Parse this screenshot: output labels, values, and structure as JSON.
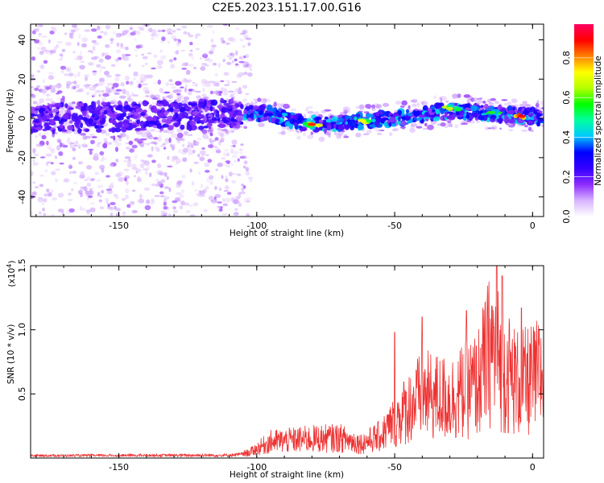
{
  "title": "C2E5.2023.151.17.00.G16",
  "chart_data": [
    {
      "type": "heatmap",
      "title": "C2E5.2023.151.17.00.G16",
      "xlabel": "Height of straight line (km)",
      "ylabel": "Frequency (Hz)",
      "xlim": [
        -182,
        4
      ],
      "ylim": [
        -50,
        48
      ],
      "x_ticks": [
        -150,
        -100,
        -50,
        0
      ],
      "x_tick_labels": [
        "-150",
        "-100",
        "-50",
        "0"
      ],
      "y_ticks": [
        -40,
        -20,
        0,
        20,
        40
      ],
      "y_tick_labels": [
        "-40",
        "-20",
        "0",
        "20",
        "40"
      ],
      "colorbar": {
        "label": "Normalized spectral amplitude",
        "range": [
          0,
          0.97
        ],
        "ticks": [
          0.0,
          0.2,
          0.4,
          0.6,
          0.8
        ],
        "tick_labels": [
          "0.0",
          "0.2",
          "0.4",
          "0.6",
          "0.8"
        ],
        "colormap": [
          "#ffffff",
          "#d8b4ff",
          "#8c2cff",
          "#3400ff",
          "#0000ff",
          "#00c8ff",
          "#00ffa0",
          "#00ff00",
          "#b4ff00",
          "#ffff00",
          "#ff8000",
          "#ff0000",
          "#ff0060"
        ]
      },
      "ridge": [
        {
          "x": -182,
          "f": 0
        },
        {
          "x": -150,
          "f": 1
        },
        {
          "x": -120,
          "f": 2
        },
        {
          "x": -105,
          "f": 3
        },
        {
          "x": -95,
          "f": 2
        },
        {
          "x": -85,
          "f": -2
        },
        {
          "x": -75,
          "f": -3
        },
        {
          "x": -60,
          "f": -1
        },
        {
          "x": -50,
          "f": 0
        },
        {
          "x": -40,
          "f": 2
        },
        {
          "x": -30,
          "f": 4
        },
        {
          "x": -20,
          "f": 3
        },
        {
          "x": -10,
          "f": 2
        },
        {
          "x": 0,
          "f": 1
        },
        {
          "x": 4,
          "f": 0
        }
      ],
      "ridge_peaks": [
        {
          "x": -80,
          "f": -3,
          "a": 0.9
        },
        {
          "x": -62,
          "f": -1,
          "a": 0.75
        },
        {
          "x": -30,
          "f": 5,
          "a": 0.7
        },
        {
          "x": -15,
          "f": 3,
          "a": 0.6
        },
        {
          "x": -4,
          "f": 1,
          "a": 0.92
        }
      ]
    },
    {
      "type": "line",
      "xlabel": "Height of straight line (km)",
      "ylabel": "SNR (10 * v/v)",
      "y_scale_label": "(x10",
      "y_scale_exp": "4",
      "y_scale_close": ")",
      "xlim": [
        -182,
        4
      ],
      "ylim": [
        0,
        1.5
      ],
      "x_ticks": [
        -150,
        -100,
        -50,
        0
      ],
      "x_tick_labels": [
        "-150",
        "-100",
        "-50",
        "0"
      ],
      "y_ticks": [
        0.5,
        1.0,
        1.5
      ],
      "y_tick_labels": [
        "0.5",
        "1.0",
        "1.5"
      ],
      "color": "#ee3333",
      "envelope": [
        {
          "x": -182,
          "y": 0.03
        },
        {
          "x": -110,
          "y": 0.04
        },
        {
          "x": -103,
          "y": 0.07
        },
        {
          "x": -95,
          "y": 0.22
        },
        {
          "x": -80,
          "y": 0.26
        },
        {
          "x": -70,
          "y": 0.27
        },
        {
          "x": -62,
          "y": 0.2
        },
        {
          "x": -55,
          "y": 0.3
        },
        {
          "x": -47,
          "y": 0.62
        },
        {
          "x": -40,
          "y": 0.85
        },
        {
          "x": -30,
          "y": 0.8
        },
        {
          "x": -20,
          "y": 1.0
        },
        {
          "x": -15,
          "y": 1.5
        },
        {
          "x": -10,
          "y": 1.2
        },
        {
          "x": -5,
          "y": 1.0
        },
        {
          "x": 0,
          "y": 1.05
        },
        {
          "x": 4,
          "y": 1.15
        }
      ],
      "peaks": [
        {
          "x": -50,
          "y": 0.98
        },
        {
          "x": -40,
          "y": 1.1
        },
        {
          "x": -24,
          "y": 1.15
        },
        {
          "x": -13,
          "y": 1.5
        },
        {
          "x": -11,
          "y": 1.42
        },
        {
          "x": -4,
          "y": 1.17
        }
      ]
    }
  ]
}
